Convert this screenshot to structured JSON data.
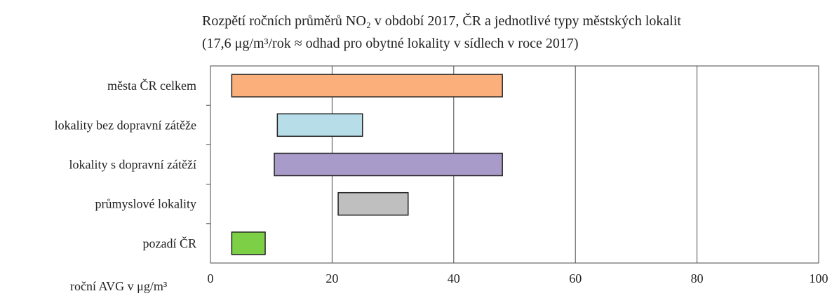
{
  "chart_data": {
    "type": "bar",
    "subtype": "floating-range-horizontal",
    "title_line1": "Rozpětí ročních průměrů NO₂ v období  2017, ČR a jednotlivé typy městských lokalit",
    "title_line2": "(17,6 μg/m³/rok ≈ odhad pro obytné lokality v sídlech v roce 2017)",
    "ylabel": "roční AVG v μg/m³",
    "xlim": [
      0,
      100
    ],
    "x_ticks": [
      0,
      20,
      40,
      60,
      80,
      100
    ],
    "grid": "vertical",
    "categories": [
      "města ČR celkem",
      "lokality bez dopravní zátěže",
      "lokality s dopravní zátěží",
      "průmyslové lokality",
      "pozadí ČR"
    ],
    "ranges": [
      {
        "min": 3.5,
        "max": 48,
        "color": "#fbb07c"
      },
      {
        "min": 11,
        "max": 25,
        "color": "#b7dde8"
      },
      {
        "min": 10.5,
        "max": 48,
        "color": "#a99bc9"
      },
      {
        "min": 21,
        "max": 32.5,
        "color": "#bfbfbf"
      },
      {
        "min": 3.5,
        "max": 9,
        "color": "#7dcf46"
      }
    ]
  }
}
